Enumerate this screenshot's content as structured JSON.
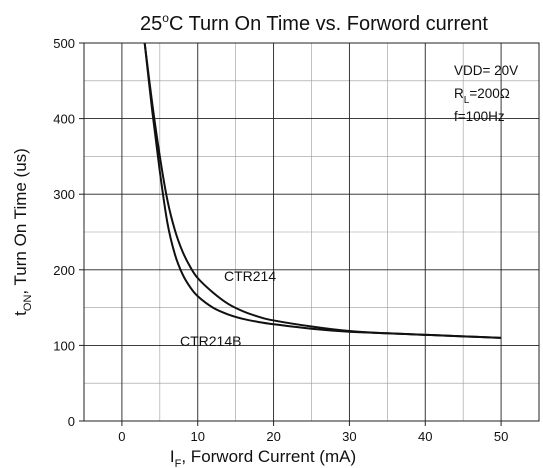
{
  "chart_data": {
    "type": "line",
    "title": {
      "prefix": "25",
      "sup": "o",
      "rest": "C Turn On Time vs. Forwo",
      "end": "rd current"
    },
    "xlabel": {
      "main": "I",
      "sub": "F",
      "rest": ", Forword Current (mA)"
    },
    "ylabel": {
      "main": "t",
      "sub": "ON",
      "rest": ", Turn On Time (us)"
    },
    "xlim": [
      -5,
      55
    ],
    "ylim": [
      0,
      500
    ],
    "x_ticks": [
      0,
      10,
      20,
      30,
      40,
      50
    ],
    "y_ticks": [
      0,
      100,
      200,
      300,
      400,
      500
    ],
    "x_tick_labels": [
      "0",
      "10",
      "20",
      "30",
      "40",
      "50"
    ],
    "y_tick_labels": [
      "0",
      "100",
      "200",
      "300",
      "400",
      "500"
    ],
    "grid": true,
    "series": [
      {
        "name": "CTR214",
        "x": [
          3,
          4,
          5,
          6,
          7,
          8,
          9,
          10,
          12,
          14,
          16,
          18,
          20,
          25,
          30,
          35,
          40,
          45,
          50
        ],
        "y": [
          500,
          410,
          330,
          262,
          220,
          194,
          177,
          165,
          150,
          141,
          135,
          131,
          128,
          122,
          118,
          116,
          114,
          112,
          110
        ]
      },
      {
        "name": "CTR214B",
        "x": [
          3,
          4,
          5,
          6,
          7,
          8,
          9,
          10,
          12,
          14,
          16,
          18,
          20,
          25,
          30,
          35,
          40,
          45,
          50
        ],
        "y": [
          500,
          420,
          350,
          292,
          252,
          224,
          204,
          189,
          170,
          155,
          145,
          138,
          133,
          125,
          119,
          116,
          114,
          112,
          110
        ]
      }
    ],
    "annotations": {
      "vdd": "VDD= 20V",
      "rl": {
        "main": "R",
        "sub": "L",
        "rest": "=200Ω"
      },
      "freq": "f=100Hz"
    }
  }
}
